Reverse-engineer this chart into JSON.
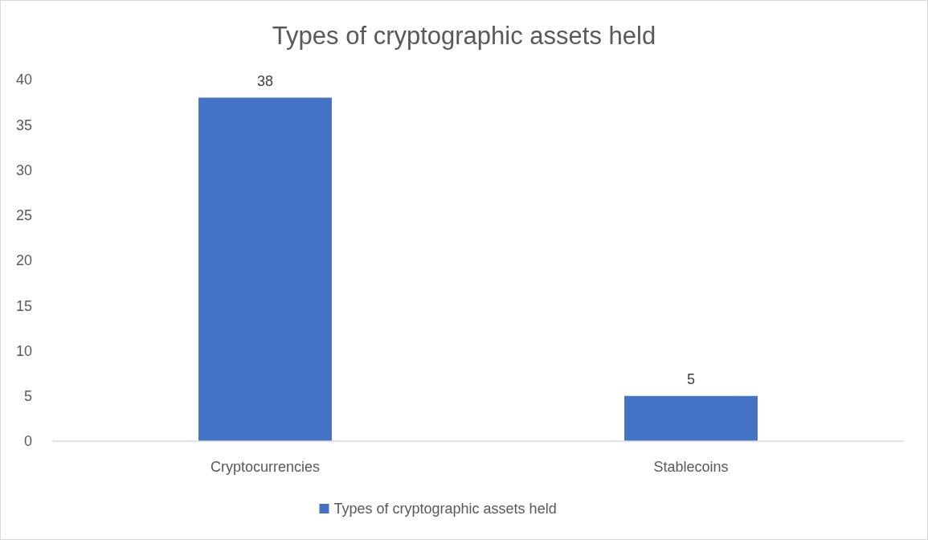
{
  "chart_data": {
    "type": "bar",
    "title": "Types of cryptographic assets held",
    "categories": [
      "Cryptocurrencies",
      "Stablecoins"
    ],
    "series": [
      {
        "name": "Types of cryptographic assets held",
        "color": "#4472c4",
        "values": [
          38,
          5
        ]
      }
    ],
    "ylim": [
      0,
      40
    ],
    "yticks": [
      0,
      5,
      10,
      15,
      20,
      25,
      30,
      35,
      40
    ],
    "grid": false,
    "legend": "bottom",
    "data_labels": true
  }
}
